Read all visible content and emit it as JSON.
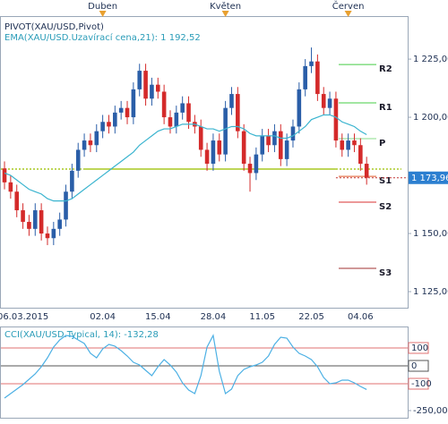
{
  "chart_data": [
    {
      "type": "candlestick",
      "title": "PIVOT(XAU/USD,Pivot)",
      "categories": [
        null,
        null,
        null,
        "06.03.2015",
        null,
        null,
        null,
        null,
        null,
        null,
        null,
        null,
        null,
        null,
        null,
        null,
        "02.04",
        null,
        null,
        null,
        null,
        null,
        null,
        null,
        null,
        "15.04",
        null,
        null,
        null,
        null,
        null,
        null,
        null,
        null,
        "28.04",
        null,
        null,
        null,
        null,
        null,
        null,
        null,
        "11.05",
        null,
        null,
        null,
        null,
        null,
        null,
        null,
        "22.05",
        null,
        null,
        null,
        null,
        null,
        null,
        null,
        "04.06",
        null
      ],
      "months": [
        null,
        null,
        null,
        null,
        null,
        null,
        null,
        null,
        null,
        null,
        null,
        null,
        null,
        null,
        null,
        null,
        "Duben",
        null,
        null,
        null,
        null,
        null,
        null,
        null,
        null,
        null,
        null,
        null,
        null,
        null,
        null,
        null,
        null,
        null,
        null,
        null,
        "Květen",
        null,
        null,
        null,
        null,
        null,
        null,
        null,
        null,
        null,
        null,
        null,
        null,
        null,
        null,
        null,
        null,
        null,
        null,
        null,
        "Červen",
        null,
        null,
        null
      ],
      "opens": [
        1178,
        1172,
        1168,
        1160,
        1155,
        1152,
        1160,
        1150,
        1148,
        1152,
        1156,
        1168,
        1177,
        1186,
        1190,
        1188,
        1194,
        1198,
        1196,
        1202,
        1204,
        1200,
        1212,
        1220,
        1208,
        1214,
        1211,
        1200,
        1196,
        1202,
        1206,
        1198,
        1196,
        1186,
        1180,
        1190,
        1184,
        1204,
        1210,
        1194,
        1180,
        1176,
        1184,
        1192,
        1188,
        1194,
        1182,
        1190,
        1196,
        1212,
        1222,
        1224,
        1210,
        1204,
        1208,
        1190,
        1186,
        1190,
        1188,
        1180
      ],
      "highs": [
        1181,
        1175,
        1171,
        1163,
        1158,
        1163,
        1163,
        1153,
        1155,
        1159,
        1171,
        1180,
        1189,
        1193,
        1193,
        1197,
        1201,
        1201,
        1205,
        1207,
        1207,
        1215,
        1223,
        1223,
        1217,
        1217,
        1214,
        1203,
        1205,
        1209,
        1209,
        1201,
        1199,
        1189,
        1193,
        1193,
        1207,
        1213,
        1213,
        1197,
        1183,
        1187,
        1195,
        1195,
        1197,
        1197,
        1193,
        1199,
        1215,
        1225,
        1230,
        1227,
        1213,
        1211,
        1211,
        1193,
        1193,
        1193,
        1191,
        1183
      ],
      "lows": [
        1169,
        1165,
        1157,
        1152,
        1149,
        1149,
        1147,
        1145,
        1145,
        1149,
        1153,
        1165,
        1174,
        1183,
        1185,
        1185,
        1191,
        1193,
        1193,
        1199,
        1197,
        1197,
        1209,
        1205,
        1205,
        1208,
        1197,
        1193,
        1193,
        1199,
        1195,
        1193,
        1183,
        1177,
        1177,
        1181,
        1181,
        1201,
        1191,
        1177,
        1168,
        1173,
        1181,
        1185,
        1185,
        1179,
        1179,
        1187,
        1193,
        1209,
        1219,
        1207,
        1201,
        1201,
        1187,
        1183,
        1183,
        1185,
        1177,
        1171
      ],
      "closes": [
        1172,
        1168,
        1160,
        1155,
        1152,
        1160,
        1150,
        1148,
        1152,
        1156,
        1168,
        1177,
        1186,
        1190,
        1188,
        1194,
        1198,
        1196,
        1202,
        1204,
        1200,
        1212,
        1220,
        1208,
        1214,
        1211,
        1200,
        1196,
        1202,
        1206,
        1198,
        1196,
        1186,
        1180,
        1190,
        1184,
        1204,
        1210,
        1194,
        1180,
        1176,
        1184,
        1192,
        1188,
        1194,
        1182,
        1190,
        1196,
        1212,
        1222,
        1224,
        1210,
        1204,
        1208,
        1190,
        1186,
        1190,
        1188,
        1180,
        1174
      ],
      "up_color": "#2a5ea8",
      "down_color": "#d42a2a",
      "ylim": [
        1117.7,
        1243.5
      ],
      "yticks": [
        {
          "value": 1125,
          "label": "1 125,00"
        },
        {
          "value": 1150,
          "label": "1 150,00"
        },
        {
          "value": 1200,
          "label": "1 200,00"
        },
        {
          "value": 1225,
          "label": "1 225,00"
        }
      ],
      "ema": {
        "name": "EMA(XAU/USD.Uzavírací cena,21): 1 192,52",
        "color": "#3ab4cf",
        "values": [
          1176,
          1175,
          1173,
          1171,
          1169,
          1168,
          1167,
          1165,
          1164,
          1164,
          1164,
          1165,
          1167,
          1169,
          1171,
          1173,
          1175,
          1177,
          1179,
          1181,
          1183,
          1185,
          1188,
          1190,
          1192,
          1194,
          1195,
          1195,
          1196,
          1197,
          1197,
          1197,
          1196,
          1195,
          1195,
          1194,
          1195,
          1196,
          1196,
          1195,
          1193,
          1192,
          1192,
          1192,
          1192,
          1191,
          1191,
          1192,
          1194,
          1196,
          1199,
          1200,
          1201,
          1201,
          1200,
          1198,
          1197,
          1196,
          1194,
          1192.52
        ]
      },
      "pivots": {
        "labels": [
          "R2",
          "R1",
          "P",
          "S1",
          "S2",
          "S3"
        ],
        "values": [
          1222.7,
          1206.2,
          1190.8,
          1174.6,
          1163.5,
          1135
        ],
        "colors": [
          "#44cc44",
          "#44cc44",
          "#88dd88",
          "#e05a2a",
          "#d83030",
          "#a03030"
        ]
      },
      "prior_pivot": {
        "value": 1177.7,
        "color": "#a8c820"
      },
      "last_price": {
        "value": 1173.96,
        "label": "1 173,96",
        "color": "#2c7fd0"
      }
    },
    {
      "type": "line",
      "title": "CCI(XAU/USD.Typical, 14): -132,28",
      "color": "#4cb0e4",
      "values": [
        -180,
        -155,
        -130,
        -105,
        -75,
        -45,
        -5,
        45,
        105,
        145,
        170,
        165,
        145,
        125,
        70,
        45,
        95,
        120,
        110,
        85,
        55,
        20,
        5,
        -25,
        -55,
        -5,
        35,
        5,
        -35,
        -95,
        -135,
        -155,
        -55,
        105,
        170,
        -30,
        -155,
        -130,
        -55,
        -20,
        -5,
        5,
        20,
        55,
        120,
        160,
        155,
        105,
        70,
        55,
        35,
        -5,
        -65,
        -100,
        -95,
        -80,
        -80,
        -95,
        -115,
        -132.28
      ],
      "ylim": [
        -290,
        220
      ],
      "yticks": [
        {
          "value": -250,
          "label": "-250,00"
        }
      ],
      "levels": [
        100,
        0,
        -100
      ],
      "level_colors": [
        "#e07070",
        "#555555",
        "#e07070"
      ]
    }
  ]
}
